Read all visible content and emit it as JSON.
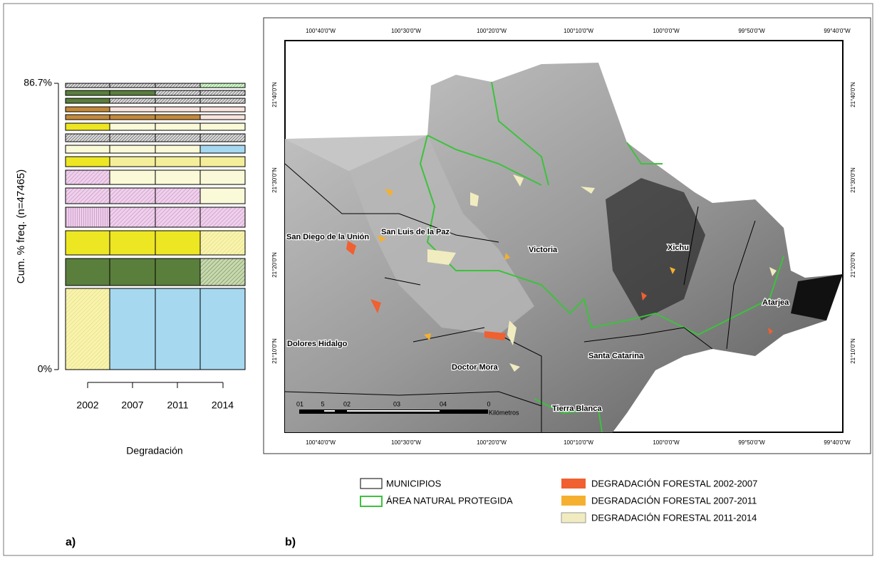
{
  "panel_a": {
    "label": "a)",
    "y_axis_label": "Cum. % freq. (n=47465)",
    "y_ticks": [
      "86.7%",
      "0%"
    ],
    "x_ticks": [
      "2002",
      "2007",
      "2011",
      "2014"
    ],
    "x_axis_label": "Degradación"
  },
  "panel_b": {
    "label": "b)",
    "lon_labels": [
      "100°40'0\"W",
      "100°30'0\"W",
      "100°20'0\"W",
      "100°10'0\"W",
      "100°0'0\"W",
      "99°50'0\"W",
      "99°40'0\"W"
    ],
    "lat_labels": [
      "21°40'0\"N",
      "21°30'0\"N",
      "21°20'0\"N",
      "21°10'0\"N"
    ],
    "places": [
      "San Diego de la Unión",
      "San Luis de la Paz",
      "Victoria",
      "Xichu",
      "Atarjea",
      "Dolores Hidalgo",
      "Santa Catarina",
      "Doctor Mora",
      "Tierra Blanca"
    ],
    "scale": {
      "ticks": [
        "01",
        "5",
        "02",
        "03",
        "04",
        "0"
      ],
      "unit": "Kilómetros"
    },
    "legend": [
      "MUNICIPIOS",
      "ÁREA NATURAL PROTEGIDA",
      "DEGRADACIÓN FORESTAL 2002-2007",
      "DEGRADACIÓN FORESTAL 2007-2011",
      "DEGRADACIÓN FORESTAL 2011-2014"
    ]
  }
}
